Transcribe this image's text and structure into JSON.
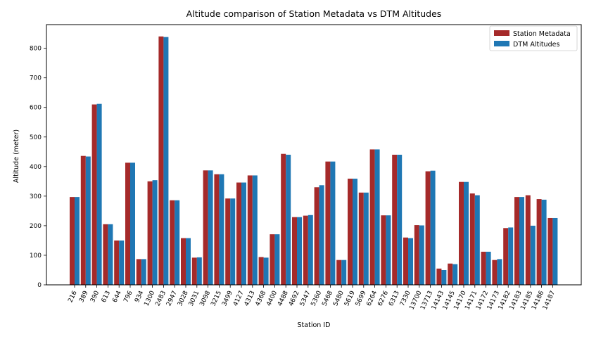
{
  "chart_data": {
    "type": "bar",
    "title": "Altitude comparison of Station Metadata vs DTM Altitudes",
    "xlabel": "Station ID",
    "ylabel": "Altitude (meter)",
    "ylim": [
      0,
      880
    ],
    "yticks": [
      0,
      100,
      200,
      300,
      400,
      500,
      600,
      700,
      800
    ],
    "legend_position": "top-right",
    "grid": false,
    "categories": [
      "216",
      "389",
      "390",
      "613",
      "644",
      "796",
      "934",
      "1300",
      "2483",
      "2947",
      "3028",
      "3031",
      "3098",
      "3215",
      "3499",
      "4127",
      "4313",
      "4368",
      "4400",
      "4488",
      "4692",
      "5347",
      "5360",
      "5468",
      "5480",
      "5619",
      "5699",
      "6264",
      "6276",
      "6313",
      "7330",
      "13700",
      "13713",
      "14143",
      "14145",
      "14170",
      "14171",
      "14172",
      "14173",
      "14182",
      "14183",
      "14185",
      "14186",
      "14187"
    ],
    "series": [
      {
        "name": "Station Metadata",
        "color": "#a52a2a",
        "values": [
          297,
          436,
          610,
          205,
          150,
          413,
          87,
          350,
          840,
          286,
          158,
          92,
          387,
          374,
          292,
          346,
          370,
          94,
          171,
          443,
          229,
          234,
          330,
          417,
          84,
          359,
          312,
          458,
          235,
          440,
          160,
          202,
          384,
          55,
          72,
          348,
          309,
          112,
          84,
          192,
          297,
          303,
          290,
          226
        ]
      },
      {
        "name": "DTM Altitudes",
        "color": "#1f77b4",
        "values": [
          297,
          434,
          612,
          205,
          150,
          413,
          87,
          354,
          838,
          286,
          158,
          93,
          387,
          374,
          292,
          346,
          370,
          92,
          171,
          440,
          229,
          236,
          337,
          417,
          84,
          359,
          312,
          458,
          235,
          440,
          158,
          201,
          386,
          50,
          70,
          348,
          303,
          112,
          87,
          194,
          297,
          200,
          288,
          226
        ]
      }
    ]
  }
}
